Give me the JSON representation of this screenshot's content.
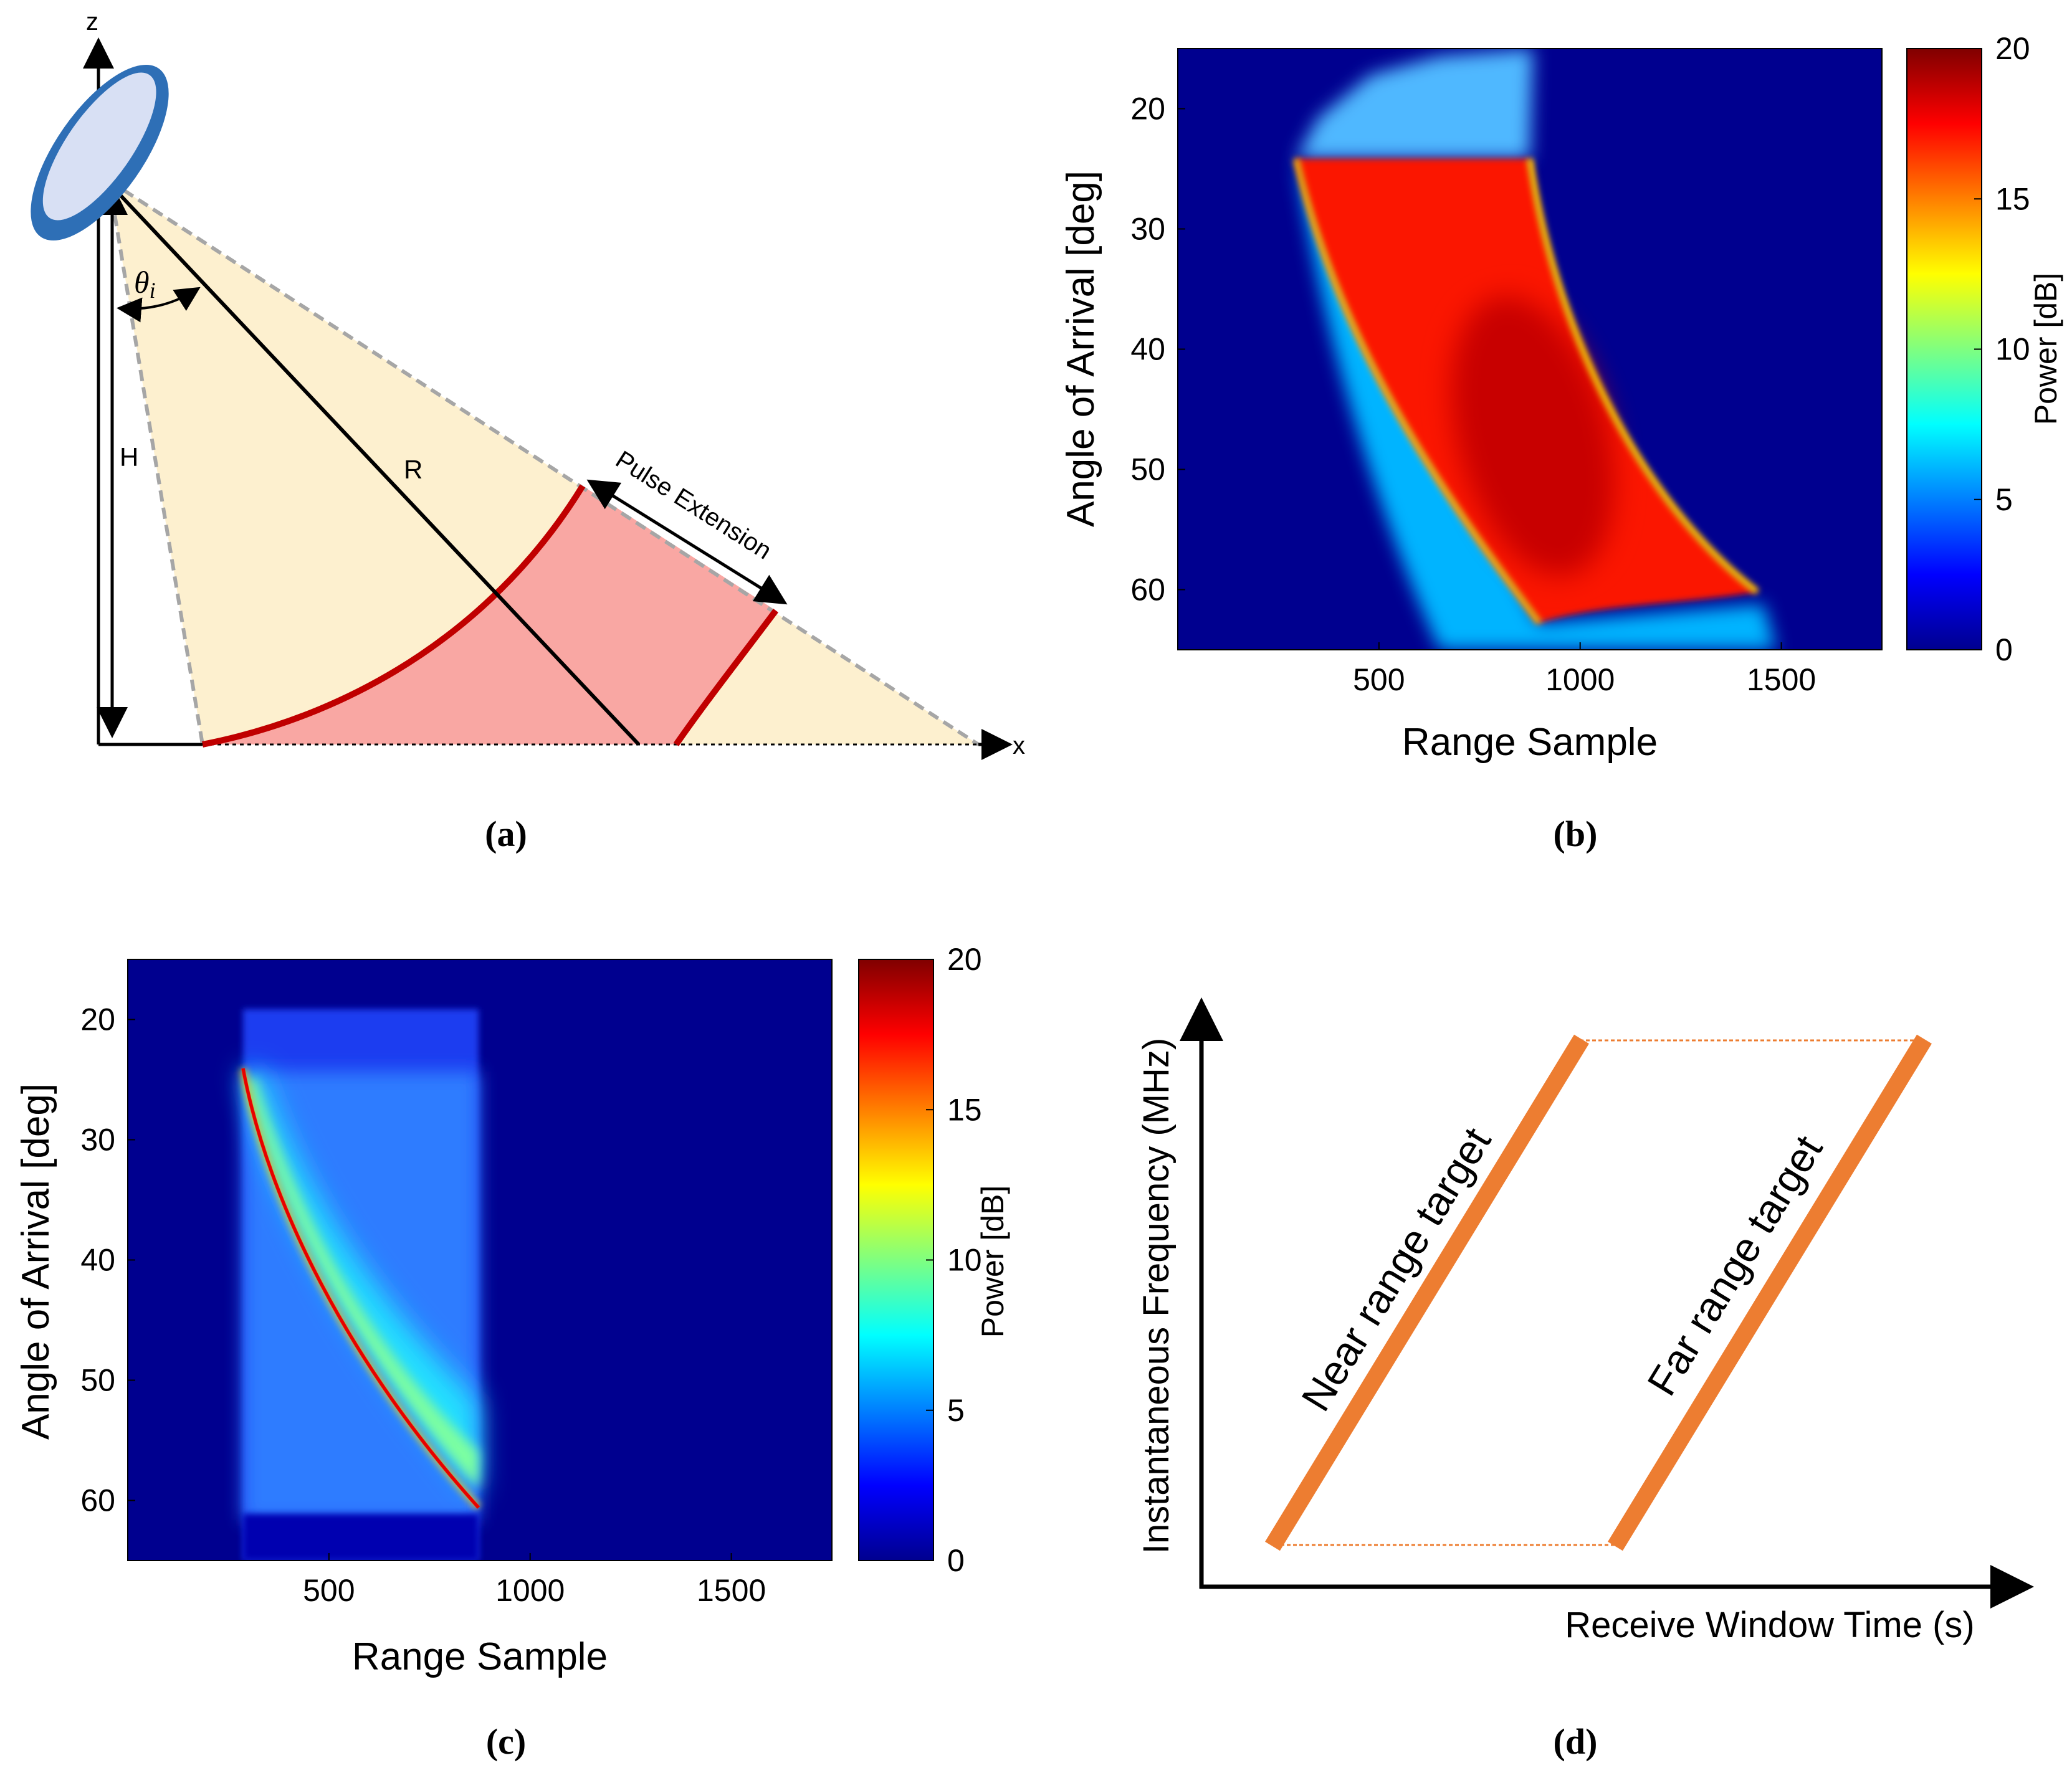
{
  "panel_labels": {
    "a": "(a)",
    "b": "(b)",
    "c": "(c)",
    "d": "(d)"
  },
  "geometry_diagram": {
    "axis_z": "z",
    "axis_x": "x",
    "label_h": "H",
    "label_r": "R",
    "label_theta": "θ",
    "label_theta_sub": "i",
    "pulse_extension": "Pulse Extension",
    "colors": {
      "beam_fill": "#fdf0cf",
      "pulse_fill": "#f9a7a3",
      "arc": "#c00000",
      "antenna": "#2e6fb6",
      "antenna_inner": "#d8e0f4"
    }
  },
  "chart_data": [
    {
      "type": "heatmap",
      "panel": "b",
      "xlabel": "Range Sample",
      "ylabel": "Angle of Arrival [deg]",
      "colorbar_label": "Power [dB]",
      "x_ticks": [
        "500",
        "1000",
        "1500"
      ],
      "y_ticks": [
        "20",
        "30",
        "40",
        "50",
        "60"
      ],
      "cbar_ticks": [
        "0",
        "5",
        "10",
        "15",
        "20"
      ],
      "xlim": [
        0,
        1750
      ],
      "ylim": [
        15,
        65
      ],
      "clim": [
        0,
        20
      ],
      "description_points": {
        "high_power_region": {
          "top_angle": 24,
          "bottom_angle": 65,
          "left_edge_range_at_24": 290,
          "right_edge_range_at_24": 880,
          "tip_range_at_60": 1440
        }
      }
    },
    {
      "type": "heatmap",
      "panel": "c",
      "xlabel": "Range Sample",
      "ylabel": "Angle of Arrival [deg]",
      "colorbar_label": "Power [dB]",
      "x_ticks": [
        "500",
        "1000",
        "1500"
      ],
      "y_ticks": [
        "20",
        "30",
        "40",
        "50",
        "60"
      ],
      "cbar_ticks": [
        "0",
        "5",
        "10",
        "15",
        "20"
      ],
      "xlim": [
        0,
        1750
      ],
      "ylim": [
        15,
        65
      ],
      "clim": [
        0,
        20
      ],
      "curve": {
        "range": [
          290,
          400,
          500,
          600,
          700,
          800,
          870
        ],
        "angle": [
          24,
          35,
          42,
          48,
          53,
          58,
          60.5
        ]
      }
    },
    {
      "type": "line",
      "panel": "d",
      "xlabel": "Receive Window Time (s)",
      "ylabel": "Instantaneous Frequency (MHz)",
      "series": [
        {
          "name": "Near range target",
          "x": [
            0.1,
            0.45
          ],
          "y": [
            0.1,
            0.95
          ]
        },
        {
          "name": "Far range target",
          "x": [
            0.5,
            0.86
          ],
          "y": [
            0.1,
            0.95
          ]
        }
      ],
      "line_color": "#ed7d31"
    }
  ]
}
